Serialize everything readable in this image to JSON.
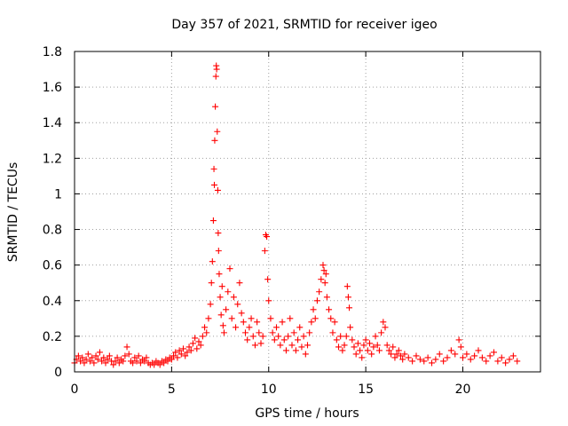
{
  "chart_data": {
    "type": "scatter",
    "title": "Day 357 of 2021, SRMTID for receiver igeo",
    "xlabel": "GPS time / hours",
    "ylabel": "SRMTID / TECUs",
    "xlim": [
      0,
      24
    ],
    "ylim": [
      0,
      1.8
    ],
    "xticks": [
      0,
      5,
      10,
      15,
      20
    ],
    "xtick_labels": [
      "0",
      "5",
      "10",
      "15",
      "20"
    ],
    "yticks": [
      0,
      0.2,
      0.4,
      0.6,
      0.8,
      1.0,
      1.2,
      1.4,
      1.6,
      1.8
    ],
    "ytick_labels": [
      "0",
      "0.2",
      "0.4",
      "0.6",
      "0.8",
      "1",
      "1.2",
      "1.4",
      "1.6",
      "1.8"
    ],
    "grid": true,
    "marker": "+",
    "color": "#ff0000",
    "series": [
      {
        "name": "igeo",
        "points": [
          [
            0.0,
            0.05
          ],
          [
            0.1,
            0.07
          ],
          [
            0.2,
            0.09
          ],
          [
            0.3,
            0.06
          ],
          [
            0.4,
            0.08
          ],
          [
            0.5,
            0.05
          ],
          [
            0.6,
            0.07
          ],
          [
            0.7,
            0.1
          ],
          [
            0.8,
            0.06
          ],
          [
            0.9,
            0.08
          ],
          [
            1.0,
            0.05
          ],
          [
            1.1,
            0.09
          ],
          [
            1.2,
            0.07
          ],
          [
            1.3,
            0.11
          ],
          [
            1.4,
            0.06
          ],
          [
            1.5,
            0.08
          ],
          [
            1.6,
            0.05
          ],
          [
            1.7,
            0.07
          ],
          [
            1.8,
            0.09
          ],
          [
            1.9,
            0.06
          ],
          [
            2.0,
            0.04
          ],
          [
            2.1,
            0.06
          ],
          [
            2.2,
            0.08
          ],
          [
            2.3,
            0.05
          ],
          [
            2.4,
            0.07
          ],
          [
            2.5,
            0.06
          ],
          [
            2.6,
            0.09
          ],
          [
            2.7,
            0.14
          ],
          [
            2.8,
            0.1
          ],
          [
            2.9,
            0.06
          ],
          [
            3.0,
            0.05
          ],
          [
            3.1,
            0.08
          ],
          [
            3.2,
            0.06
          ],
          [
            3.3,
            0.09
          ],
          [
            3.4,
            0.05
          ],
          [
            3.5,
            0.07
          ],
          [
            3.6,
            0.06
          ],
          [
            3.7,
            0.08
          ],
          [
            3.8,
            0.05
          ],
          [
            3.9,
            0.04
          ],
          [
            4.0,
            0.05
          ],
          [
            4.1,
            0.04
          ],
          [
            4.2,
            0.06
          ],
          [
            4.3,
            0.05
          ],
          [
            4.4,
            0.04
          ],
          [
            4.5,
            0.06
          ],
          [
            4.6,
            0.05
          ],
          [
            4.7,
            0.07
          ],
          [
            4.8,
            0.06
          ],
          [
            4.9,
            0.08
          ],
          [
            5.0,
            0.07
          ],
          [
            5.1,
            0.09
          ],
          [
            5.2,
            0.11
          ],
          [
            5.3,
            0.08
          ],
          [
            5.4,
            0.12
          ],
          [
            5.5,
            0.1
          ],
          [
            5.6,
            0.13
          ],
          [
            5.7,
            0.09
          ],
          [
            5.8,
            0.11
          ],
          [
            5.9,
            0.14
          ],
          [
            6.0,
            0.12
          ],
          [
            6.1,
            0.16
          ],
          [
            6.2,
            0.19
          ],
          [
            6.3,
            0.13
          ],
          [
            6.4,
            0.17
          ],
          [
            6.5,
            0.15
          ],
          [
            6.6,
            0.2
          ],
          [
            6.7,
            0.25
          ],
          [
            6.8,
            0.22
          ],
          [
            6.9,
            0.3
          ],
          [
            7.0,
            0.38
          ],
          [
            7.05,
            0.5
          ],
          [
            7.1,
            0.62
          ],
          [
            7.15,
            0.85
          ],
          [
            7.18,
            1.14
          ],
          [
            7.2,
            1.05
          ],
          [
            7.22,
            1.3
          ],
          [
            7.25,
            1.49
          ],
          [
            7.28,
            1.66
          ],
          [
            7.3,
            1.72
          ],
          [
            7.32,
            1.7
          ],
          [
            7.35,
            1.35
          ],
          [
            7.38,
            1.02
          ],
          [
            7.4,
            0.78
          ],
          [
            7.42,
            0.68
          ],
          [
            7.45,
            0.55
          ],
          [
            7.5,
            0.42
          ],
          [
            7.55,
            0.32
          ],
          [
            7.6,
            0.48
          ],
          [
            7.65,
            0.26
          ],
          [
            7.7,
            0.22
          ],
          [
            7.8,
            0.35
          ],
          [
            7.9,
            0.45
          ],
          [
            8.0,
            0.58
          ],
          [
            8.1,
            0.3
          ],
          [
            8.2,
            0.42
          ],
          [
            8.3,
            0.25
          ],
          [
            8.4,
            0.38
          ],
          [
            8.5,
            0.5
          ],
          [
            8.6,
            0.33
          ],
          [
            8.7,
            0.28
          ],
          [
            8.8,
            0.22
          ],
          [
            8.9,
            0.18
          ],
          [
            9.0,
            0.25
          ],
          [
            9.1,
            0.3
          ],
          [
            9.2,
            0.2
          ],
          [
            9.3,
            0.15
          ],
          [
            9.4,
            0.28
          ],
          [
            9.5,
            0.22
          ],
          [
            9.6,
            0.16
          ],
          [
            9.7,
            0.2
          ],
          [
            9.8,
            0.68
          ],
          [
            9.85,
            0.77
          ],
          [
            9.9,
            0.76
          ],
          [
            9.95,
            0.52
          ],
          [
            10.0,
            0.4
          ],
          [
            10.1,
            0.3
          ],
          [
            10.2,
            0.22
          ],
          [
            10.3,
            0.18
          ],
          [
            10.4,
            0.25
          ],
          [
            10.5,
            0.2
          ],
          [
            10.6,
            0.15
          ],
          [
            10.7,
            0.28
          ],
          [
            10.8,
            0.18
          ],
          [
            10.9,
            0.12
          ],
          [
            11.0,
            0.2
          ],
          [
            11.1,
            0.3
          ],
          [
            11.2,
            0.15
          ],
          [
            11.3,
            0.22
          ],
          [
            11.4,
            0.12
          ],
          [
            11.5,
            0.18
          ],
          [
            11.6,
            0.25
          ],
          [
            11.7,
            0.14
          ],
          [
            11.8,
            0.2
          ],
          [
            11.9,
            0.1
          ],
          [
            12.0,
            0.15
          ],
          [
            12.1,
            0.22
          ],
          [
            12.2,
            0.28
          ],
          [
            12.3,
            0.35
          ],
          [
            12.4,
            0.3
          ],
          [
            12.5,
            0.4
          ],
          [
            12.6,
            0.45
          ],
          [
            12.7,
            0.52
          ],
          [
            12.8,
            0.6
          ],
          [
            12.85,
            0.57
          ],
          [
            12.9,
            0.5
          ],
          [
            12.95,
            0.55
          ],
          [
            13.0,
            0.42
          ],
          [
            13.1,
            0.35
          ],
          [
            13.2,
            0.3
          ],
          [
            13.3,
            0.22
          ],
          [
            13.4,
            0.28
          ],
          [
            13.5,
            0.18
          ],
          [
            13.6,
            0.14
          ],
          [
            13.7,
            0.2
          ],
          [
            13.8,
            0.12
          ],
          [
            13.9,
            0.15
          ],
          [
            14.0,
            0.2
          ],
          [
            14.05,
            0.48
          ],
          [
            14.1,
            0.42
          ],
          [
            14.15,
            0.36
          ],
          [
            14.2,
            0.25
          ],
          [
            14.3,
            0.18
          ],
          [
            14.4,
            0.14
          ],
          [
            14.5,
            0.1
          ],
          [
            14.6,
            0.16
          ],
          [
            14.7,
            0.12
          ],
          [
            14.8,
            0.08
          ],
          [
            14.9,
            0.15
          ],
          [
            15.0,
            0.18
          ],
          [
            15.1,
            0.12
          ],
          [
            15.2,
            0.16
          ],
          [
            15.3,
            0.1
          ],
          [
            15.4,
            0.14
          ],
          [
            15.5,
            0.2
          ],
          [
            15.6,
            0.15
          ],
          [
            15.7,
            0.12
          ],
          [
            15.8,
            0.22
          ],
          [
            15.9,
            0.28
          ],
          [
            16.0,
            0.25
          ],
          [
            16.1,
            0.15
          ],
          [
            16.2,
            0.12
          ],
          [
            16.3,
            0.1
          ],
          [
            16.4,
            0.14
          ],
          [
            16.5,
            0.08
          ],
          [
            16.6,
            0.1
          ],
          [
            16.7,
            0.12
          ],
          [
            16.8,
            0.09
          ],
          [
            16.9,
            0.07
          ],
          [
            17.0,
            0.1
          ],
          [
            17.2,
            0.08
          ],
          [
            17.4,
            0.06
          ],
          [
            17.6,
            0.09
          ],
          [
            17.8,
            0.07
          ],
          [
            18.0,
            0.06
          ],
          [
            18.2,
            0.08
          ],
          [
            18.4,
            0.05
          ],
          [
            18.6,
            0.07
          ],
          [
            18.8,
            0.1
          ],
          [
            19.0,
            0.06
          ],
          [
            19.2,
            0.08
          ],
          [
            19.4,
            0.12
          ],
          [
            19.6,
            0.1
          ],
          [
            19.8,
            0.18
          ],
          [
            19.9,
            0.14
          ],
          [
            20.0,
            0.08
          ],
          [
            20.2,
            0.1
          ],
          [
            20.4,
            0.07
          ],
          [
            20.6,
            0.09
          ],
          [
            20.8,
            0.12
          ],
          [
            21.0,
            0.08
          ],
          [
            21.2,
            0.06
          ],
          [
            21.4,
            0.09
          ],
          [
            21.6,
            0.11
          ],
          [
            21.8,
            0.06
          ],
          [
            22.0,
            0.08
          ],
          [
            22.2,
            0.05
          ],
          [
            22.4,
            0.07
          ],
          [
            22.6,
            0.09
          ],
          [
            22.8,
            0.06
          ]
        ]
      }
    ]
  }
}
